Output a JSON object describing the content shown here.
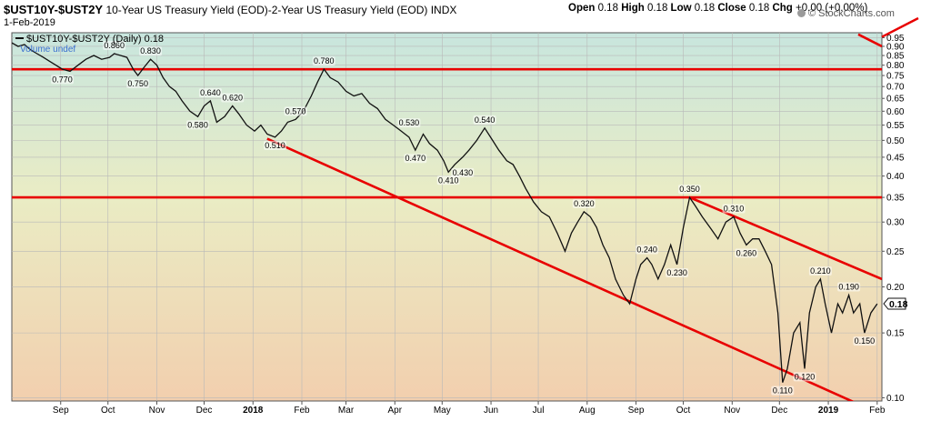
{
  "header": {
    "symbol": "$UST10Y-$UST2Y",
    "description": "10-Year US Treasury Yield (EOD)-2-Year US Treasury Yield (EOD)",
    "exchange": "INDX",
    "date": "1-Feb-2019",
    "ohlc": {
      "open_label": "Open",
      "open": "0.18",
      "high_label": "High",
      "high": "0.18",
      "low_label": "Low",
      "low": "0.18",
      "close_label": "Close",
      "close": "0.18",
      "chg_label": "Chg",
      "chg": "+0.00 (+0.00%)"
    },
    "brand": "© StockCharts.com"
  },
  "legend": {
    "series_label": "$UST10Y-$UST2Y (Daily) 0.18",
    "volume_label": "Volume undef"
  },
  "colors": {
    "price_line": "#111111",
    "trendlines": "#e80000",
    "bg_top": "#c8e6de",
    "bg_bottom": "#f2cfae"
  },
  "chart_data": {
    "type": "line",
    "yscale": "log",
    "ylim": [
      0.098,
      0.98
    ],
    "y_ticks": [
      0.95,
      0.9,
      0.85,
      0.8,
      0.75,
      0.7,
      0.65,
      0.6,
      0.55,
      0.5,
      0.45,
      0.4,
      0.35,
      0.3,
      0.25,
      0.2,
      0.15,
      0.1
    ],
    "y_tick_labels": [
      "0.95",
      "0.90",
      "0.85",
      "0.80",
      "0.75",
      "0.70",
      "0.65",
      "0.60",
      "0.55",
      "0.50",
      "0.45",
      "0.40",
      "0.35",
      "0.30",
      "0.25",
      "0.20",
      "0.15",
      "0.10"
    ],
    "x_ticks": [
      {
        "date": "2017-09-01",
        "label": "Sep",
        "bold": false
      },
      {
        "date": "2017-10-01",
        "label": "Oct",
        "bold": false
      },
      {
        "date": "2017-11-01",
        "label": "Nov",
        "bold": false
      },
      {
        "date": "2017-12-01",
        "label": "Dec",
        "bold": false
      },
      {
        "date": "2018-01-01",
        "label": "2018",
        "bold": true
      },
      {
        "date": "2018-02-01",
        "label": "Feb",
        "bold": false
      },
      {
        "date": "2018-03-01",
        "label": "Mar",
        "bold": false
      },
      {
        "date": "2018-04-01",
        "label": "Apr",
        "bold": false
      },
      {
        "date": "2018-05-01",
        "label": "May",
        "bold": false
      },
      {
        "date": "2018-06-01",
        "label": "Jun",
        "bold": false
      },
      {
        "date": "2018-07-01",
        "label": "Jul",
        "bold": false
      },
      {
        "date": "2018-08-01",
        "label": "Aug",
        "bold": false
      },
      {
        "date": "2018-09-01",
        "label": "Sep",
        "bold": false
      },
      {
        "date": "2018-10-01",
        "label": "Oct",
        "bold": false
      },
      {
        "date": "2018-11-01",
        "label": "Nov",
        "bold": false
      },
      {
        "date": "2018-12-01",
        "label": "Dec",
        "bold": false
      },
      {
        "date": "2019-01-01",
        "label": "2019",
        "bold": true
      },
      {
        "date": "2019-02-01",
        "label": "Feb",
        "bold": false
      }
    ],
    "x_range": [
      "2017-08-01",
      "2019-02-04"
    ],
    "series": [
      {
        "values": [
          [
            "2017-08-01",
            0.92
          ],
          [
            "2017-08-05",
            0.9
          ],
          [
            "2017-08-09",
            0.91
          ],
          [
            "2017-08-13",
            0.88
          ],
          [
            "2017-08-17",
            0.86
          ],
          [
            "2017-08-21",
            0.84
          ],
          [
            "2017-08-25",
            0.82
          ],
          [
            "2017-08-29",
            0.8
          ],
          [
            "2017-09-02",
            0.78
          ],
          [
            "2017-09-07",
            0.77
          ],
          [
            "2017-09-12",
            0.8
          ],
          [
            "2017-09-17",
            0.83
          ],
          [
            "2017-09-22",
            0.85
          ],
          [
            "2017-09-27",
            0.83
          ],
          [
            "2017-10-02",
            0.84
          ],
          [
            "2017-10-05",
            0.86
          ],
          [
            "2017-10-09",
            0.85
          ],
          [
            "2017-10-13",
            0.84
          ],
          [
            "2017-10-17",
            0.78
          ],
          [
            "2017-10-20",
            0.75
          ],
          [
            "2017-10-24",
            0.79
          ],
          [
            "2017-10-28",
            0.83
          ],
          [
            "2017-11-01",
            0.8
          ],
          [
            "2017-11-05",
            0.74
          ],
          [
            "2017-11-09",
            0.7
          ],
          [
            "2017-11-13",
            0.68
          ],
          [
            "2017-11-17",
            0.64
          ],
          [
            "2017-11-22",
            0.6
          ],
          [
            "2017-11-27",
            0.58
          ],
          [
            "2017-12-01",
            0.62
          ],
          [
            "2017-12-05",
            0.64
          ],
          [
            "2017-12-09",
            0.56
          ],
          [
            "2017-12-14",
            0.58
          ],
          [
            "2017-12-19",
            0.62
          ],
          [
            "2017-12-23",
            0.59
          ],
          [
            "2017-12-28",
            0.55
          ],
          [
            "2018-01-02",
            0.53
          ],
          [
            "2018-01-06",
            0.55
          ],
          [
            "2018-01-10",
            0.52
          ],
          [
            "2018-01-15",
            0.51
          ],
          [
            "2018-01-19",
            0.53
          ],
          [
            "2018-01-23",
            0.56
          ],
          [
            "2018-01-28",
            0.57
          ],
          [
            "2018-02-02",
            0.6
          ],
          [
            "2018-02-07",
            0.66
          ],
          [
            "2018-02-11",
            0.72
          ],
          [
            "2018-02-15",
            0.78
          ],
          [
            "2018-02-19",
            0.74
          ],
          [
            "2018-02-24",
            0.72
          ],
          [
            "2018-03-01",
            0.68
          ],
          [
            "2018-03-06",
            0.66
          ],
          [
            "2018-03-11",
            0.67
          ],
          [
            "2018-03-16",
            0.63
          ],
          [
            "2018-03-21",
            0.61
          ],
          [
            "2018-03-26",
            0.57
          ],
          [
            "2018-03-31",
            0.55
          ],
          [
            "2018-04-05",
            0.53
          ],
          [
            "2018-04-10",
            0.51
          ],
          [
            "2018-04-14",
            0.47
          ],
          [
            "2018-04-19",
            0.52
          ],
          [
            "2018-04-23",
            0.49
          ],
          [
            "2018-04-28",
            0.47
          ],
          [
            "2018-05-02",
            0.44
          ],
          [
            "2018-05-05",
            0.41
          ],
          [
            "2018-05-09",
            0.43
          ],
          [
            "2018-05-14",
            0.45
          ],
          [
            "2018-05-18",
            0.47
          ],
          [
            "2018-05-23",
            0.5
          ],
          [
            "2018-05-28",
            0.54
          ],
          [
            "2018-06-02",
            0.5
          ],
          [
            "2018-06-06",
            0.47
          ],
          [
            "2018-06-11",
            0.44
          ],
          [
            "2018-06-15",
            0.43
          ],
          [
            "2018-06-19",
            0.4
          ],
          [
            "2018-06-23",
            0.37
          ],
          [
            "2018-06-28",
            0.34
          ],
          [
            "2018-07-03",
            0.32
          ],
          [
            "2018-07-08",
            0.31
          ],
          [
            "2018-07-13",
            0.28
          ],
          [
            "2018-07-18",
            0.25
          ],
          [
            "2018-07-22",
            0.28
          ],
          [
            "2018-07-26",
            0.3
          ],
          [
            "2018-07-30",
            0.32
          ],
          [
            "2018-08-03",
            0.31
          ],
          [
            "2018-08-07",
            0.29
          ],
          [
            "2018-08-11",
            0.26
          ],
          [
            "2018-08-15",
            0.24
          ],
          [
            "2018-08-19",
            0.21
          ],
          [
            "2018-08-24",
            0.19
          ],
          [
            "2018-08-28",
            0.18
          ],
          [
            "2018-09-01",
            0.21
          ],
          [
            "2018-09-04",
            0.23
          ],
          [
            "2018-09-08",
            0.24
          ],
          [
            "2018-09-11",
            0.23
          ],
          [
            "2018-09-15",
            0.21
          ],
          [
            "2018-09-19",
            0.23
          ],
          [
            "2018-09-23",
            0.26
          ],
          [
            "2018-09-27",
            0.23
          ],
          [
            "2018-10-01",
            0.29
          ],
          [
            "2018-10-05",
            0.35
          ],
          [
            "2018-10-09",
            0.33
          ],
          [
            "2018-10-13",
            0.31
          ],
          [
            "2018-10-18",
            0.29
          ],
          [
            "2018-10-23",
            0.27
          ],
          [
            "2018-10-28",
            0.3
          ],
          [
            "2018-11-02",
            0.31
          ],
          [
            "2018-11-06",
            0.28
          ],
          [
            "2018-11-10",
            0.26
          ],
          [
            "2018-11-14",
            0.27
          ],
          [
            "2018-11-18",
            0.27
          ],
          [
            "2018-11-22",
            0.25
          ],
          [
            "2018-11-26",
            0.23
          ],
          [
            "2018-11-30",
            0.17
          ],
          [
            "2018-12-03",
            0.11
          ],
          [
            "2018-12-06",
            0.12
          ],
          [
            "2018-12-10",
            0.15
          ],
          [
            "2018-12-14",
            0.16
          ],
          [
            "2018-12-17",
            0.12
          ],
          [
            "2018-12-20",
            0.17
          ],
          [
            "2018-12-24",
            0.2
          ],
          [
            "2018-12-27",
            0.21
          ],
          [
            "2018-12-30",
            0.18
          ],
          [
            "2019-01-03",
            0.15
          ],
          [
            "2019-01-07",
            0.18
          ],
          [
            "2019-01-10",
            0.17
          ],
          [
            "2019-01-14",
            0.19
          ],
          [
            "2019-01-17",
            0.17
          ],
          [
            "2019-01-21",
            0.18
          ],
          [
            "2019-01-24",
            0.15
          ],
          [
            "2019-01-28",
            0.17
          ],
          [
            "2019-02-01",
            0.18
          ]
        ]
      }
    ],
    "annotations": [
      {
        "date": "2017-09-02",
        "value": 0.77,
        "label": "0.770",
        "pos": "below"
      },
      {
        "date": "2017-10-05",
        "value": 0.86,
        "label": "0.860",
        "pos": "above"
      },
      {
        "date": "2017-10-20",
        "value": 0.75,
        "label": "0.750",
        "pos": "below"
      },
      {
        "date": "2017-10-28",
        "value": 0.83,
        "label": "0.830",
        "pos": "above"
      },
      {
        "date": "2017-11-27",
        "value": 0.58,
        "label": "0.580",
        "pos": "below"
      },
      {
        "date": "2017-12-05",
        "value": 0.64,
        "label": "0.640",
        "pos": "above"
      },
      {
        "date": "2017-12-19",
        "value": 0.62,
        "label": "0.620",
        "pos": "above"
      },
      {
        "date": "2018-01-15",
        "value": 0.51,
        "label": "0.510",
        "pos": "below"
      },
      {
        "date": "2018-01-28",
        "value": 0.57,
        "label": "0.570",
        "pos": "above"
      },
      {
        "date": "2018-02-15",
        "value": 0.78,
        "label": "0.780",
        "pos": "above"
      },
      {
        "date": "2018-04-10",
        "value": 0.53,
        "label": "0.530",
        "pos": "above"
      },
      {
        "date": "2018-04-14",
        "value": 0.47,
        "label": "0.470",
        "pos": "below"
      },
      {
        "date": "2018-05-05",
        "value": 0.41,
        "label": "0.410",
        "pos": "below"
      },
      {
        "date": "2018-05-14",
        "value": 0.43,
        "label": "0.430",
        "pos": "below"
      },
      {
        "date": "2018-05-28",
        "value": 0.54,
        "label": "0.540",
        "pos": "above"
      },
      {
        "date": "2018-07-30",
        "value": 0.32,
        "label": "0.320",
        "pos": "above"
      },
      {
        "date": "2018-09-08",
        "value": 0.24,
        "label": "0.240",
        "pos": "above"
      },
      {
        "date": "2018-09-27",
        "value": 0.23,
        "label": "0.230",
        "pos": "below"
      },
      {
        "date": "2018-10-05",
        "value": 0.35,
        "label": "0.350",
        "pos": "above"
      },
      {
        "date": "2018-11-02",
        "value": 0.31,
        "label": "0.310",
        "pos": "above"
      },
      {
        "date": "2018-11-10",
        "value": 0.26,
        "label": "0.260",
        "pos": "below"
      },
      {
        "date": "2018-12-03",
        "value": 0.11,
        "label": "0.110",
        "pos": "below"
      },
      {
        "date": "2018-12-17",
        "value": 0.12,
        "label": "0.120",
        "pos": "below"
      },
      {
        "date": "2018-12-27",
        "value": 0.21,
        "label": "0.210",
        "pos": "above"
      },
      {
        "date": "2019-01-14",
        "value": 0.19,
        "label": "0.190",
        "pos": "above"
      },
      {
        "date": "2019-01-24",
        "value": 0.15,
        "label": "0.150",
        "pos": "below"
      }
    ],
    "hlines": [
      0.78,
      0.35
    ],
    "trendlines": [
      {
        "from": [
          "2018-01-10",
          0.505
        ],
        "to": [
          "2019-01-18",
          0.097
        ]
      },
      {
        "from": [
          "2018-10-05",
          0.35
        ],
        "to": [
          "2019-02-04",
          0.21
        ]
      },
      {
        "from": [
          "2019-01-20",
          0.97
        ],
        "to": [
          "2019-02-04",
          0.9
        ]
      }
    ],
    "last_value_label": "0.18",
    "last_value": 0.18,
    "grid": true
  }
}
